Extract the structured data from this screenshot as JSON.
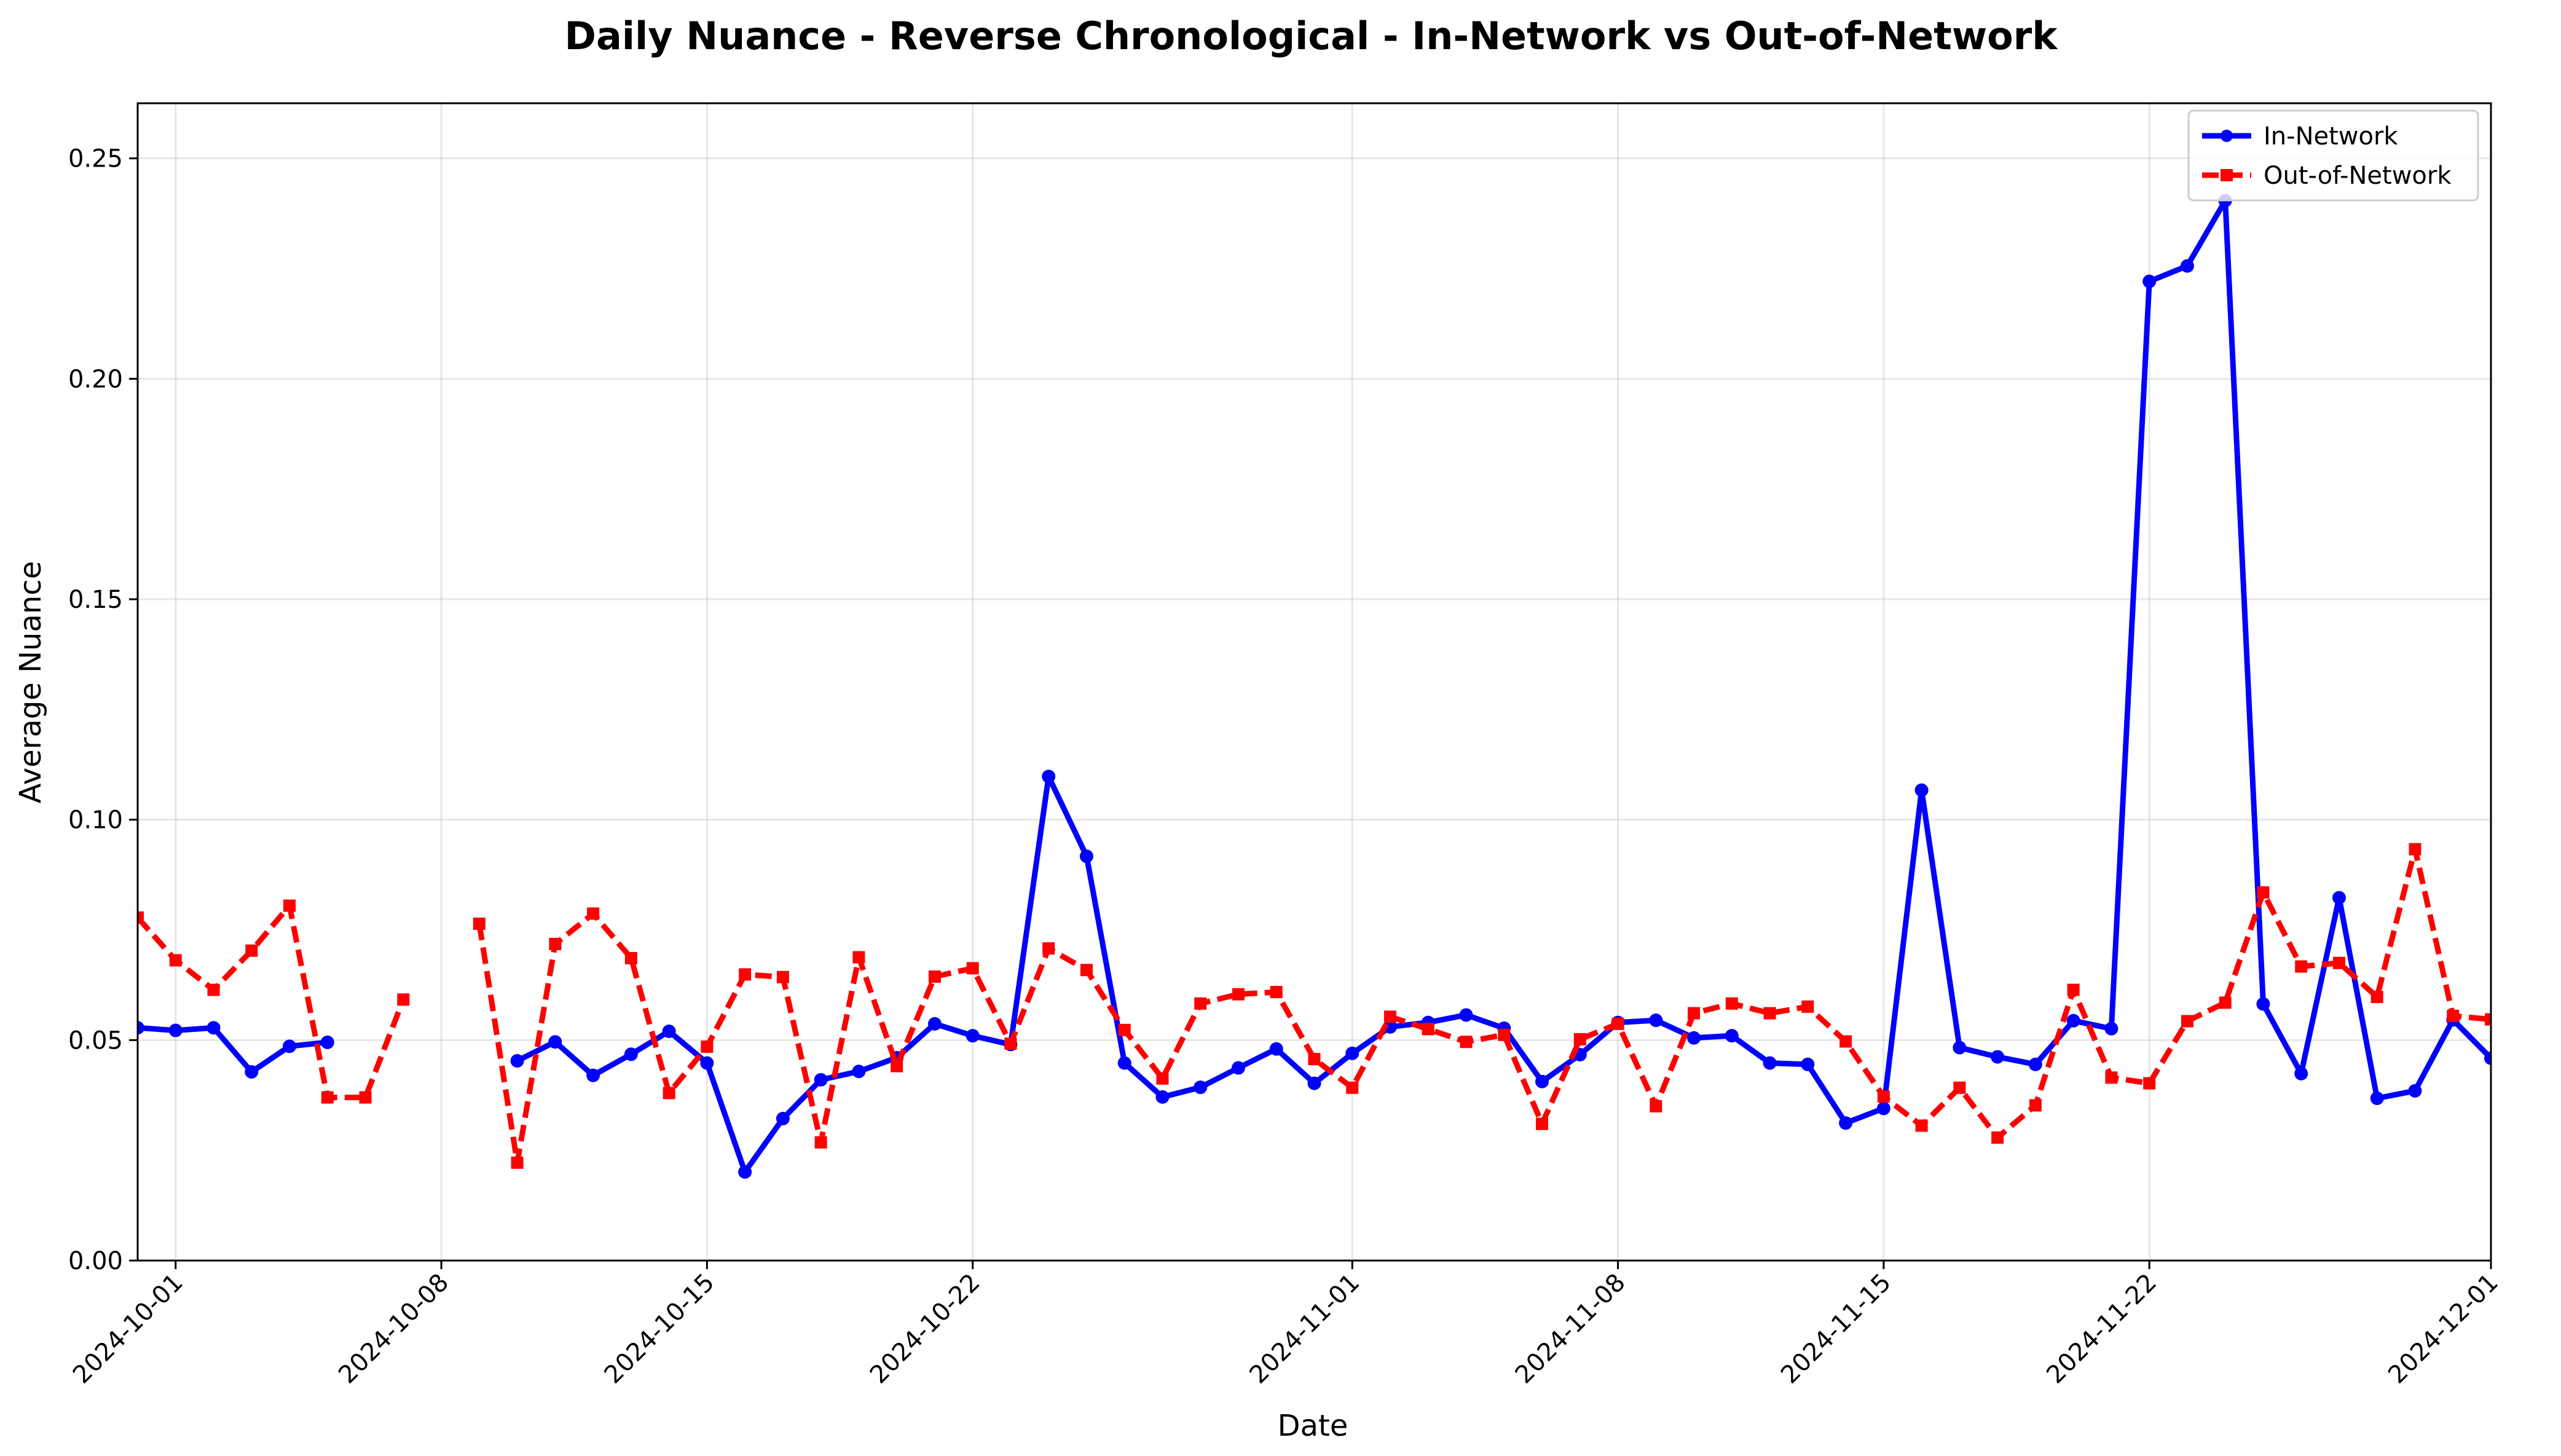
{
  "chart_data": {
    "type": "line",
    "title": "Daily Nuance - Reverse Chronological - In-Network vs Out-of-Network",
    "xlabel": "Date",
    "ylabel": "Average Nuance",
    "xlim": [
      "2024-09-30",
      "2024-12-01"
    ],
    "ylim": [
      0,
      0.2625
    ],
    "grid": true,
    "legend_position": "top-right",
    "x_ticks": [
      "2024-10-01",
      "2024-10-08",
      "2024-10-15",
      "2024-10-22",
      "2024-11-01",
      "2024-11-08",
      "2024-11-15",
      "2024-11-22",
      "2024-12-01"
    ],
    "y_ticks": [
      "0.00",
      "0.05",
      "0.10",
      "0.15",
      "0.20",
      "0.25"
    ],
    "series": [
      {
        "name": "In-Network",
        "color": "#0000ff",
        "style": "solid",
        "marker": "circle",
        "points": [
          [
            "2024-09-30",
            0.0528
          ],
          [
            "2024-10-01",
            0.0522
          ],
          [
            "2024-10-02",
            0.0528
          ],
          [
            "2024-10-03",
            0.0428
          ],
          [
            "2024-10-04",
            0.0486
          ],
          [
            "2024-10-05",
            0.0495
          ],
          [
            "2024-10-10",
            0.0453
          ],
          [
            "2024-10-11",
            0.0496
          ],
          [
            "2024-10-12",
            0.042
          ],
          [
            "2024-10-13",
            0.0468
          ],
          [
            "2024-10-14",
            0.052
          ],
          [
            "2024-10-15",
            0.0448
          ],
          [
            "2024-10-16",
            0.0201
          ],
          [
            "2024-10-17",
            0.0322
          ],
          [
            "2024-10-18",
            0.041
          ],
          [
            "2024-10-19",
            0.0429
          ],
          [
            "2024-10-20",
            0.046
          ],
          [
            "2024-10-21",
            0.0537
          ],
          [
            "2024-10-22",
            0.051
          ],
          [
            "2024-10-23",
            0.049
          ],
          [
            "2024-10-24",
            0.1098
          ],
          [
            "2024-10-25",
            0.0917
          ],
          [
            "2024-10-26",
            0.0448
          ],
          [
            "2024-10-27",
            0.0371
          ],
          [
            "2024-10-28",
            0.0393
          ],
          [
            "2024-10-29",
            0.0437
          ],
          [
            "2024-10-30",
            0.048
          ],
          [
            "2024-10-31",
            0.0402
          ],
          [
            "2024-11-01",
            0.047
          ],
          [
            "2024-11-02",
            0.053
          ],
          [
            "2024-11-03",
            0.054
          ],
          [
            "2024-11-04",
            0.0557
          ],
          [
            "2024-11-05",
            0.0527
          ],
          [
            "2024-11-06",
            0.0406
          ],
          [
            "2024-11-07",
            0.0467
          ],
          [
            "2024-11-08",
            0.054
          ],
          [
            "2024-11-09",
            0.0545
          ],
          [
            "2024-11-10",
            0.0505
          ],
          [
            "2024-11-11",
            0.051
          ],
          [
            "2024-11-12",
            0.0448
          ],
          [
            "2024-11-13",
            0.0445
          ],
          [
            "2024-11-14",
            0.0312
          ],
          [
            "2024-11-15",
            0.0345
          ],
          [
            "2024-11-16",
            0.1067
          ],
          [
            "2024-11-17",
            0.0483
          ],
          [
            "2024-11-18",
            0.0462
          ],
          [
            "2024-11-19",
            0.0445
          ],
          [
            "2024-11-20",
            0.0544
          ],
          [
            "2024-11-21",
            0.0526
          ],
          [
            "2024-11-22",
            0.2221
          ],
          [
            "2024-11-23",
            0.2256
          ],
          [
            "2024-11-24",
            0.2404
          ],
          [
            "2024-11-25",
            0.0582
          ],
          [
            "2024-11-26",
            0.0424
          ],
          [
            "2024-11-27",
            0.0823
          ],
          [
            "2024-11-28",
            0.0368
          ],
          [
            "2024-11-29",
            0.0385
          ],
          [
            "2024-11-30",
            0.0546
          ],
          [
            "2024-12-01",
            0.0459
          ]
        ]
      },
      {
        "name": "Out-of-Network",
        "color": "#ff0000",
        "style": "dashed",
        "marker": "square",
        "points": [
          [
            "2024-09-30",
            0.0778
          ],
          [
            "2024-10-01",
            0.0681
          ],
          [
            "2024-10-02",
            0.0614
          ],
          [
            "2024-10-03",
            0.0703
          ],
          [
            "2024-10-04",
            0.0805
          ],
          [
            "2024-10-05",
            0.037
          ],
          [
            "2024-10-06",
            0.037
          ],
          [
            "2024-10-07",
            0.0592
          ],
          [
            "2024-10-09",
            0.0764
          ],
          [
            "2024-10-10",
            0.0222
          ],
          [
            "2024-10-11",
            0.0718
          ],
          [
            "2024-10-12",
            0.0787
          ],
          [
            "2024-10-13",
            0.0686
          ],
          [
            "2024-10-14",
            0.038
          ],
          [
            "2024-10-15",
            0.0485
          ],
          [
            "2024-10-16",
            0.0649
          ],
          [
            "2024-10-17",
            0.0643
          ],
          [
            "2024-10-18",
            0.0268
          ],
          [
            "2024-10-19",
            0.0688
          ],
          [
            "2024-10-20",
            0.0441
          ],
          [
            "2024-10-21",
            0.0644
          ],
          [
            "2024-10-22",
            0.0663
          ],
          [
            "2024-10-23",
            0.0492
          ],
          [
            "2024-10-24",
            0.0708
          ],
          [
            "2024-10-25",
            0.0659
          ],
          [
            "2024-10-26",
            0.0523
          ],
          [
            "2024-10-27",
            0.0413
          ],
          [
            "2024-10-28",
            0.0583
          ],
          [
            "2024-10-29",
            0.0604
          ],
          [
            "2024-10-30",
            0.0609
          ],
          [
            "2024-10-31",
            0.0457
          ],
          [
            "2024-11-01",
            0.0392
          ],
          [
            "2024-11-02",
            0.0553
          ],
          [
            "2024-11-03",
            0.0525
          ],
          [
            "2024-11-04",
            0.0496
          ],
          [
            "2024-11-05",
            0.0512
          ],
          [
            "2024-11-06",
            0.031
          ],
          [
            "2024-11-07",
            0.0502
          ],
          [
            "2024-11-08",
            0.0537
          ],
          [
            "2024-11-09",
            0.035
          ],
          [
            "2024-11-10",
            0.0561
          ],
          [
            "2024-11-11",
            0.0583
          ],
          [
            "2024-11-12",
            0.0561
          ],
          [
            "2024-11-13",
            0.0576
          ],
          [
            "2024-11-14",
            0.0497
          ],
          [
            "2024-11-15",
            0.0372
          ],
          [
            "2024-11-16",
            0.0306
          ],
          [
            "2024-11-17",
            0.0392
          ],
          [
            "2024-11-18",
            0.0279
          ],
          [
            "2024-11-19",
            0.0352
          ],
          [
            "2024-11-20",
            0.0614
          ],
          [
            "2024-11-21",
            0.0415
          ],
          [
            "2024-11-22",
            0.0402
          ],
          [
            "2024-11-23",
            0.0543
          ],
          [
            "2024-11-24",
            0.0585
          ],
          [
            "2024-11-25",
            0.0835
          ],
          [
            "2024-11-26",
            0.0667
          ],
          [
            "2024-11-27",
            0.0675
          ],
          [
            "2024-11-28",
            0.0598
          ],
          [
            "2024-11-29",
            0.0933
          ],
          [
            "2024-11-30",
            0.0555
          ],
          [
            "2024-12-01",
            0.0547
          ]
        ]
      }
    ]
  }
}
